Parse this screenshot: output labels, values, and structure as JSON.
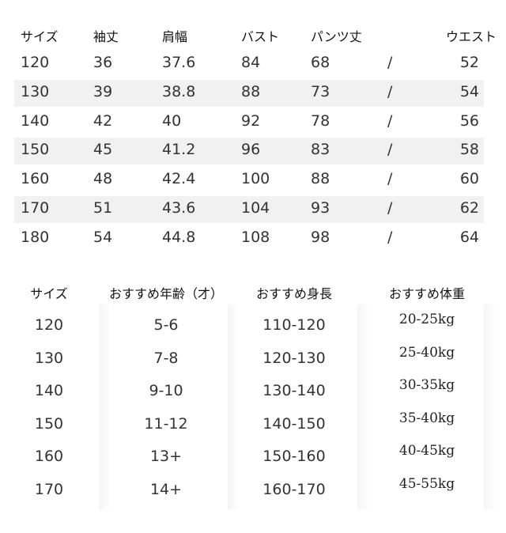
{
  "size_table": {
    "headers": [
      "サイズ",
      "袖丈",
      "肩幅",
      "バスト",
      "パンツ丈",
      "",
      "ウエスト"
    ],
    "rows": [
      [
        "120",
        "36",
        "37.6",
        "84",
        "68",
        "/",
        "52"
      ],
      [
        "130",
        "39",
        "38.8",
        "88",
        "73",
        "/",
        "54"
      ],
      [
        "140",
        "42",
        "40",
        "92",
        "78",
        "/",
        "56"
      ],
      [
        "150",
        "45",
        "41.2",
        "96",
        "83",
        "/",
        "58"
      ],
      [
        "160",
        "48",
        "42.4",
        "100",
        "88",
        "/",
        "60"
      ],
      [
        "170",
        "51",
        "43.6",
        "104",
        "93",
        "/",
        "62"
      ],
      [
        "180",
        "54",
        "44.8",
        "108",
        "98",
        "/",
        "64"
      ]
    ]
  },
  "recommend_table": {
    "headers": [
      "サイズ",
      "おすすめ年齢（才）",
      "おすすめ身長",
      "おすすめ体重"
    ],
    "rows": [
      [
        "120",
        "5-6",
        "110-120",
        "20-25kg"
      ],
      [
        "130",
        "7-8",
        "120-130",
        "25-40kg"
      ],
      [
        "140",
        "9-10",
        "130-140",
        "30-35kg"
      ],
      [
        "150",
        "11-12",
        "140-150",
        "35-40kg"
      ],
      [
        "160",
        "13+",
        "150-160",
        "40-45kg"
      ],
      [
        "170",
        "14+",
        "160-170",
        "45-55kg"
      ]
    ]
  },
  "colors": {
    "stripe": "#f1f1f1",
    "text": "#333333"
  }
}
